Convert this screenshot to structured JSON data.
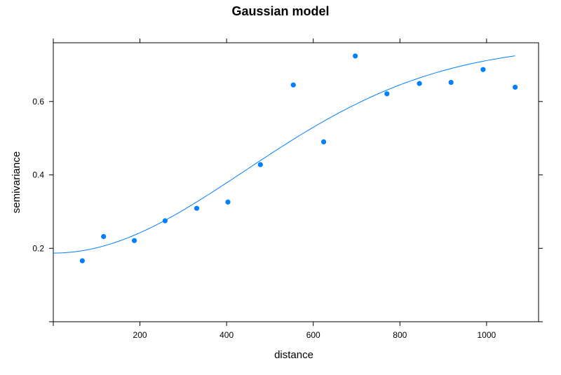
{
  "chart_data": {
    "type": "scatter",
    "title": "Gaussian model",
    "xlabel": "distance",
    "ylabel": "semivariance",
    "xlim": [
      0,
      1120
    ],
    "ylim": [
      0,
      0.76
    ],
    "xticks": [
      200,
      400,
      600,
      800,
      1000
    ],
    "yticks": [
      0.2,
      0.4,
      0.6
    ],
    "grid": false,
    "point_color": "#0080ff",
    "line_color": "#0080ff",
    "series": [
      {
        "kind": "points",
        "x": [
          67,
          116,
          187,
          258,
          331,
          403,
          478,
          554,
          624,
          697,
          770,
          845,
          918,
          992,
          1066
        ],
        "y": [
          0.166,
          0.232,
          0.221,
          0.275,
          0.309,
          0.326,
          0.428,
          0.645,
          0.49,
          0.724,
          0.621,
          0.649,
          0.652,
          0.687,
          0.639
        ]
      },
      {
        "kind": "fitted-curve",
        "model": "gaussian",
        "nugget": 0.187,
        "partial_sill": 0.568,
        "range": 624,
        "x_from": 0,
        "x_to": 1066
      }
    ]
  }
}
